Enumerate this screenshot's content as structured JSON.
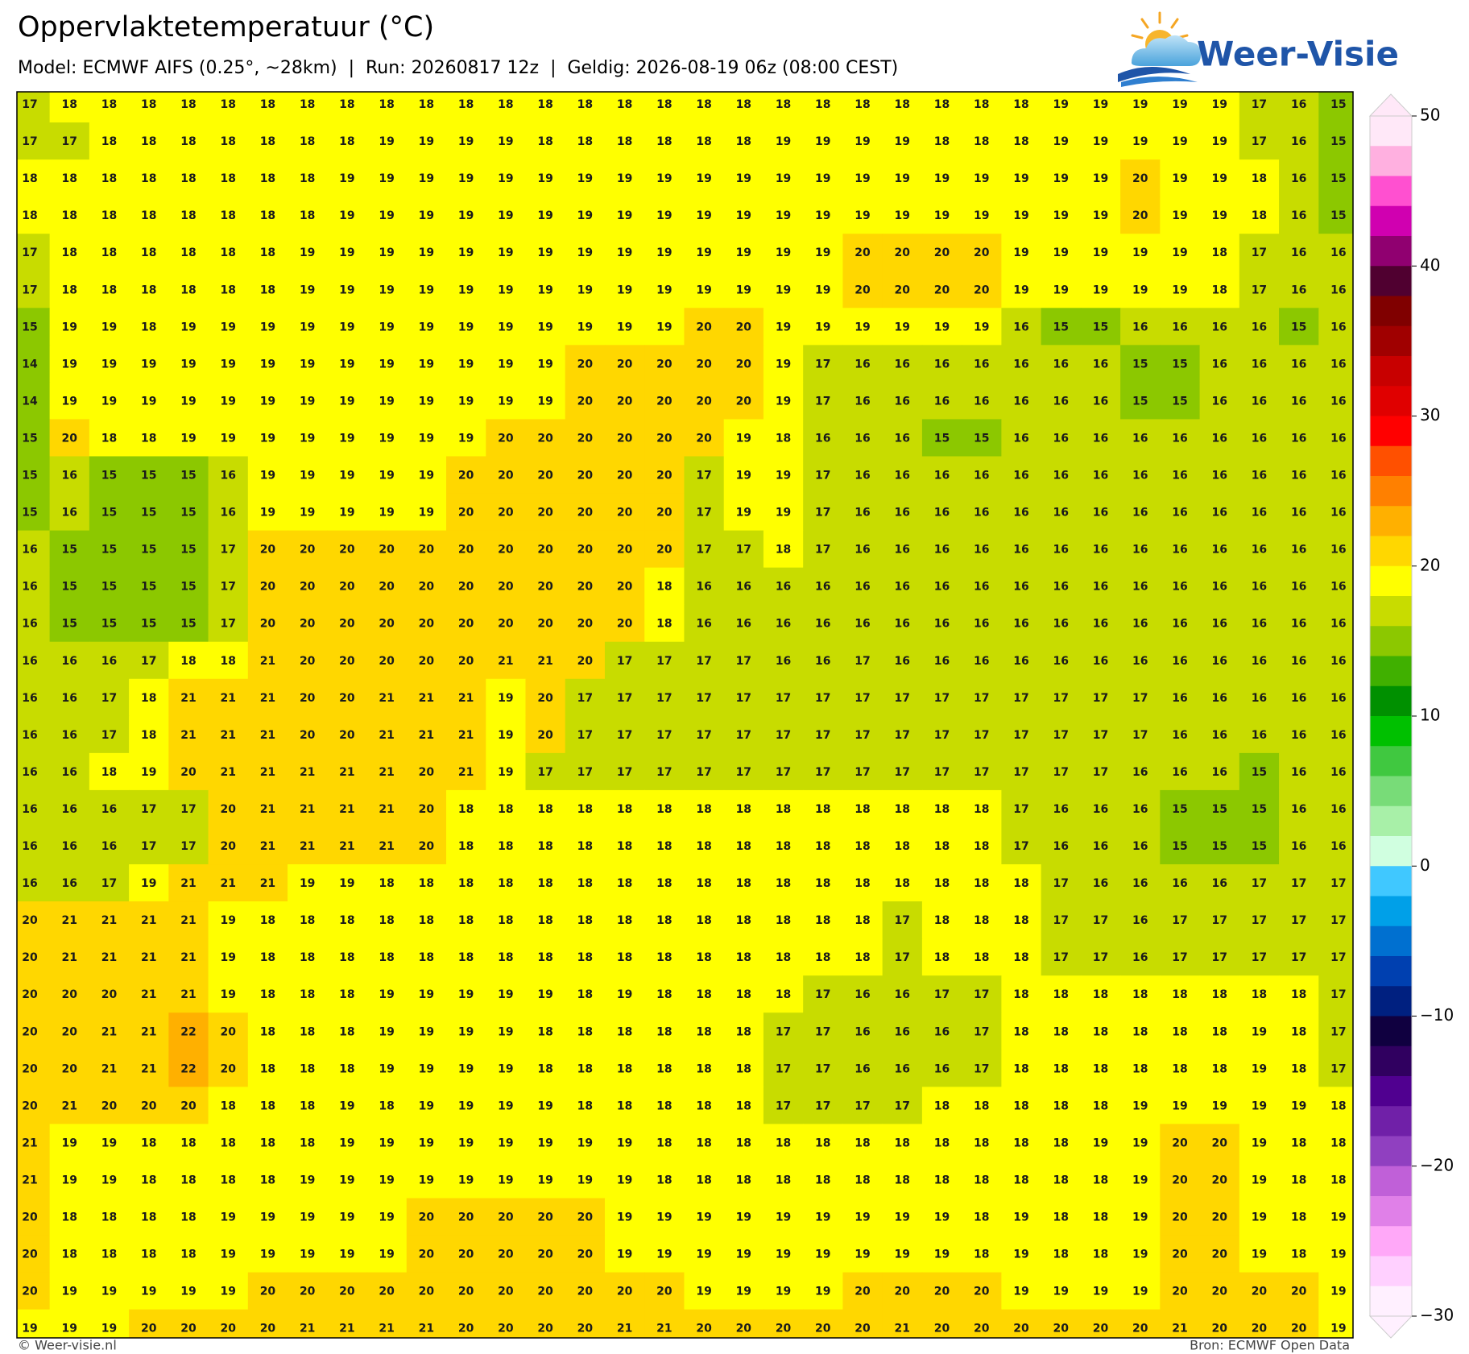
{
  "header": {
    "title": "Oppervlaktetemperatuur (°C)",
    "subtitle": "Model: ECMWF AIFS (0.25°, ~28km)  |  Run: 20260817 12z  |  Geldig: 2026-08-19 06z (08:00 CEST)"
  },
  "logo": {
    "text": "Weer-Visie"
  },
  "map": {
    "rows": [
      [
        17,
        18,
        18,
        18,
        18,
        18,
        18,
        18,
        18,
        18,
        18,
        18,
        18,
        18,
        18,
        18,
        18,
        18,
        18,
        18,
        18,
        18,
        18,
        18,
        18,
        18,
        19,
        19,
        19,
        19,
        19,
        17,
        16,
        15
      ],
      [
        17,
        17,
        18,
        18,
        18,
        18,
        18,
        18,
        18,
        19,
        19,
        19,
        19,
        18,
        18,
        18,
        18,
        18,
        18,
        19,
        19,
        19,
        19,
        18,
        18,
        18,
        19,
        19,
        19,
        19,
        19,
        17,
        16,
        15
      ],
      [
        18,
        18,
        18,
        18,
        18,
        18,
        18,
        18,
        19,
        19,
        19,
        19,
        19,
        19,
        19,
        19,
        19,
        19,
        19,
        19,
        19,
        19,
        19,
        19,
        19,
        19,
        19,
        19,
        20,
        19,
        19,
        18,
        16,
        15
      ],
      [
        18,
        18,
        18,
        18,
        18,
        18,
        18,
        18,
        19,
        19,
        19,
        19,
        19,
        19,
        19,
        19,
        19,
        19,
        19,
        19,
        19,
        19,
        19,
        19,
        19,
        19,
        19,
        19,
        20,
        19,
        19,
        18,
        16,
        15
      ],
      [
        17,
        18,
        18,
        18,
        18,
        18,
        18,
        19,
        19,
        19,
        19,
        19,
        19,
        19,
        19,
        19,
        19,
        19,
        19,
        19,
        19,
        20,
        20,
        20,
        20,
        19,
        19,
        19,
        19,
        19,
        18,
        17,
        16,
        16
      ],
      [
        17,
        18,
        18,
        18,
        18,
        18,
        18,
        19,
        19,
        19,
        19,
        19,
        19,
        19,
        19,
        19,
        19,
        19,
        19,
        19,
        19,
        20,
        20,
        20,
        20,
        19,
        19,
        19,
        19,
        19,
        18,
        17,
        16,
        16
      ],
      [
        15,
        19,
        19,
        18,
        19,
        19,
        19,
        19,
        19,
        19,
        19,
        19,
        19,
        19,
        19,
        19,
        19,
        20,
        20,
        19,
        19,
        19,
        19,
        19,
        19,
        16,
        15,
        15,
        16,
        16,
        16,
        16,
        15,
        16
      ],
      [
        14,
        19,
        19,
        19,
        19,
        19,
        19,
        19,
        19,
        19,
        19,
        19,
        19,
        19,
        20,
        20,
        20,
        20,
        20,
        19,
        17,
        16,
        16,
        16,
        16,
        16,
        16,
        16,
        15,
        15,
        16,
        16,
        16,
        16
      ],
      [
        14,
        19,
        19,
        19,
        19,
        19,
        19,
        19,
        19,
        19,
        19,
        19,
        19,
        19,
        20,
        20,
        20,
        20,
        20,
        19,
        17,
        16,
        16,
        16,
        16,
        16,
        16,
        16,
        15,
        15,
        16,
        16,
        16,
        16
      ],
      [
        15,
        20,
        18,
        18,
        19,
        19,
        19,
        19,
        19,
        19,
        19,
        19,
        20,
        20,
        20,
        20,
        20,
        20,
        19,
        18,
        16,
        16,
        16,
        15,
        15,
        16,
        16,
        16,
        16,
        16,
        16,
        16,
        16,
        16
      ],
      [
        15,
        16,
        15,
        15,
        15,
        16,
        19,
        19,
        19,
        19,
        19,
        20,
        20,
        20,
        20,
        20,
        20,
        17,
        19,
        19,
        17,
        16,
        16,
        16,
        16,
        16,
        16,
        16,
        16,
        16,
        16,
        16,
        16,
        16
      ],
      [
        15,
        16,
        15,
        15,
        15,
        16,
        19,
        19,
        19,
        19,
        19,
        20,
        20,
        20,
        20,
        20,
        20,
        17,
        19,
        19,
        17,
        16,
        16,
        16,
        16,
        16,
        16,
        16,
        16,
        16,
        16,
        16,
        16,
        16
      ],
      [
        16,
        15,
        15,
        15,
        15,
        17,
        20,
        20,
        20,
        20,
        20,
        20,
        20,
        20,
        20,
        20,
        20,
        17,
        17,
        18,
        17,
        16,
        16,
        16,
        16,
        16,
        16,
        16,
        16,
        16,
        16,
        16,
        16,
        16
      ],
      [
        16,
        15,
        15,
        15,
        15,
        17,
        20,
        20,
        20,
        20,
        20,
        20,
        20,
        20,
        20,
        20,
        18,
        16,
        16,
        16,
        16,
        16,
        16,
        16,
        16,
        16,
        16,
        16,
        16,
        16,
        16,
        16,
        16,
        16
      ],
      [
        16,
        15,
        15,
        15,
        15,
        17,
        20,
        20,
        20,
        20,
        20,
        20,
        20,
        20,
        20,
        20,
        18,
        16,
        16,
        16,
        16,
        16,
        16,
        16,
        16,
        16,
        16,
        16,
        16,
        16,
        16,
        16,
        16,
        16
      ],
      [
        16,
        16,
        16,
        17,
        18,
        18,
        21,
        20,
        20,
        20,
        20,
        20,
        21,
        21,
        20,
        17,
        17,
        17,
        17,
        16,
        16,
        17,
        16,
        16,
        16,
        16,
        16,
        16,
        16,
        16,
        16,
        16,
        16,
        16
      ],
      [
        16,
        16,
        17,
        18,
        21,
        21,
        21,
        20,
        20,
        21,
        21,
        21,
        19,
        20,
        17,
        17,
        17,
        17,
        17,
        17,
        17,
        17,
        17,
        17,
        17,
        17,
        17,
        17,
        17,
        16,
        16,
        16,
        16,
        16
      ],
      [
        16,
        16,
        17,
        18,
        21,
        21,
        21,
        20,
        20,
        21,
        21,
        21,
        19,
        20,
        17,
        17,
        17,
        17,
        17,
        17,
        17,
        17,
        17,
        17,
        17,
        17,
        17,
        17,
        17,
        16,
        16,
        16,
        16,
        16
      ],
      [
        16,
        16,
        18,
        19,
        20,
        21,
        21,
        21,
        21,
        21,
        20,
        21,
        19,
        17,
        17,
        17,
        17,
        17,
        17,
        17,
        17,
        17,
        17,
        17,
        17,
        17,
        17,
        17,
        16,
        16,
        16,
        15,
        16,
        16
      ],
      [
        16,
        16,
        16,
        17,
        17,
        20,
        21,
        21,
        21,
        21,
        20,
        18,
        18,
        18,
        18,
        18,
        18,
        18,
        18,
        18,
        18,
        18,
        18,
        18,
        18,
        17,
        16,
        16,
        16,
        15,
        15,
        15,
        16,
        16
      ],
      [
        16,
        16,
        16,
        17,
        17,
        20,
        21,
        21,
        21,
        21,
        20,
        18,
        18,
        18,
        18,
        18,
        18,
        18,
        18,
        18,
        18,
        18,
        18,
        18,
        18,
        17,
        16,
        16,
        16,
        15,
        15,
        15,
        16,
        16
      ],
      [
        16,
        16,
        17,
        19,
        21,
        21,
        21,
        19,
        19,
        18,
        18,
        18,
        18,
        18,
        18,
        18,
        18,
        18,
        18,
        18,
        18,
        18,
        18,
        18,
        18,
        18,
        17,
        16,
        16,
        16,
        16,
        17,
        17,
        17
      ],
      [
        20,
        21,
        21,
        21,
        21,
        19,
        18,
        18,
        18,
        18,
        18,
        18,
        18,
        18,
        18,
        18,
        18,
        18,
        18,
        18,
        18,
        18,
        17,
        18,
        18,
        18,
        17,
        17,
        16,
        17,
        17,
        17,
        17,
        17
      ],
      [
        20,
        21,
        21,
        21,
        21,
        19,
        18,
        18,
        18,
        18,
        18,
        18,
        18,
        18,
        18,
        18,
        18,
        18,
        18,
        18,
        18,
        18,
        17,
        18,
        18,
        18,
        17,
        17,
        16,
        17,
        17,
        17,
        17,
        17
      ],
      [
        20,
        20,
        20,
        21,
        21,
        19,
        18,
        18,
        18,
        19,
        19,
        19,
        19,
        19,
        18,
        19,
        18,
        18,
        18,
        18,
        17,
        16,
        16,
        17,
        17,
        18,
        18,
        18,
        18,
        18,
        18,
        18,
        18,
        17
      ],
      [
        20,
        20,
        21,
        21,
        22,
        20,
        18,
        18,
        18,
        19,
        19,
        19,
        19,
        18,
        18,
        18,
        18,
        18,
        18,
        17,
        17,
        16,
        16,
        16,
        17,
        18,
        18,
        18,
        18,
        18,
        18,
        19,
        18,
        17
      ],
      [
        20,
        20,
        21,
        21,
        22,
        20,
        18,
        18,
        18,
        19,
        19,
        19,
        19,
        18,
        18,
        18,
        18,
        18,
        18,
        17,
        17,
        16,
        16,
        16,
        17,
        18,
        18,
        18,
        18,
        18,
        18,
        19,
        18,
        17
      ],
      [
        20,
        21,
        20,
        20,
        20,
        18,
        18,
        18,
        19,
        18,
        19,
        19,
        19,
        19,
        18,
        18,
        18,
        18,
        18,
        17,
        17,
        17,
        17,
        18,
        18,
        18,
        18,
        18,
        19,
        19,
        19,
        19,
        19,
        18
      ],
      [
        21,
        19,
        19,
        18,
        18,
        18,
        18,
        18,
        19,
        19,
        19,
        19,
        19,
        19,
        19,
        19,
        18,
        18,
        18,
        18,
        18,
        18,
        18,
        18,
        18,
        18,
        18,
        19,
        19,
        20,
        20,
        19,
        18,
        18
      ],
      [
        21,
        19,
        19,
        18,
        18,
        18,
        18,
        19,
        19,
        19,
        19,
        19,
        19,
        19,
        19,
        19,
        18,
        18,
        18,
        18,
        18,
        18,
        18,
        18,
        18,
        18,
        18,
        18,
        19,
        20,
        20,
        19,
        18,
        18
      ],
      [
        20,
        18,
        18,
        18,
        18,
        19,
        19,
        19,
        19,
        19,
        20,
        20,
        20,
        20,
        20,
        19,
        19,
        19,
        19,
        19,
        19,
        19,
        19,
        19,
        18,
        19,
        18,
        18,
        19,
        20,
        20,
        19,
        18,
        19
      ],
      [
        20,
        18,
        18,
        18,
        18,
        19,
        19,
        19,
        19,
        19,
        20,
        20,
        20,
        20,
        20,
        19,
        19,
        19,
        19,
        19,
        19,
        19,
        19,
        19,
        18,
        19,
        18,
        18,
        19,
        20,
        20,
        19,
        18,
        19
      ],
      [
        20,
        19,
        19,
        19,
        19,
        19,
        20,
        20,
        20,
        20,
        20,
        20,
        20,
        20,
        20,
        20,
        20,
        19,
        19,
        19,
        19,
        20,
        20,
        20,
        20,
        19,
        19,
        19,
        19,
        20,
        20,
        20,
        20,
        19
      ],
      [
        19,
        19,
        19,
        20,
        20,
        20,
        20,
        21,
        21,
        21,
        21,
        20,
        20,
        20,
        20,
        21,
        21,
        20,
        20,
        20,
        20,
        20,
        21,
        20,
        20,
        20,
        20,
        20,
        20,
        21,
        20,
        20,
        20,
        19
      ]
    ]
  },
  "colorbar": {
    "range": [
      -30,
      50
    ],
    "colors": [
      "#ffe8f8",
      "#ffb0e0",
      "#ff50d0",
      "#d000b0",
      "#900070",
      "#500030",
      "#800000",
      "#a00000",
      "#c80000",
      "#e00000",
      "#ff0000",
      "#ff5000",
      "#ff8000",
      "#ffb000",
      "#ffd700",
      "#ffff00",
      "#c8dc00",
      "#8cc800",
      "#40b000",
      "#009000",
      "#00c000",
      "#40c840",
      "#78dc78",
      "#a8f0a8",
      "#d0ffe0",
      "#40c8ff",
      "#00a0e8",
      "#0070d0",
      "#0040b0",
      "#002080",
      "#100040",
      "#300060",
      "#500090",
      "#7020a8",
      "#9040c0",
      "#c060d8",
      "#e080e8",
      "#ffa8f8",
      "#ffd0ff",
      "#fff0ff"
    ],
    "ticks": [
      50,
      40,
      30,
      20,
      10,
      0,
      {
        "value": -10,
        "label": "−10"
      },
      {
        "value": -20,
        "label": "−20"
      },
      {
        "value": -30,
        "label": "−30"
      }
    ]
  },
  "footer": {
    "left": "© Weer-visie.nl",
    "right": "Bron: ECMWF Open Data"
  }
}
